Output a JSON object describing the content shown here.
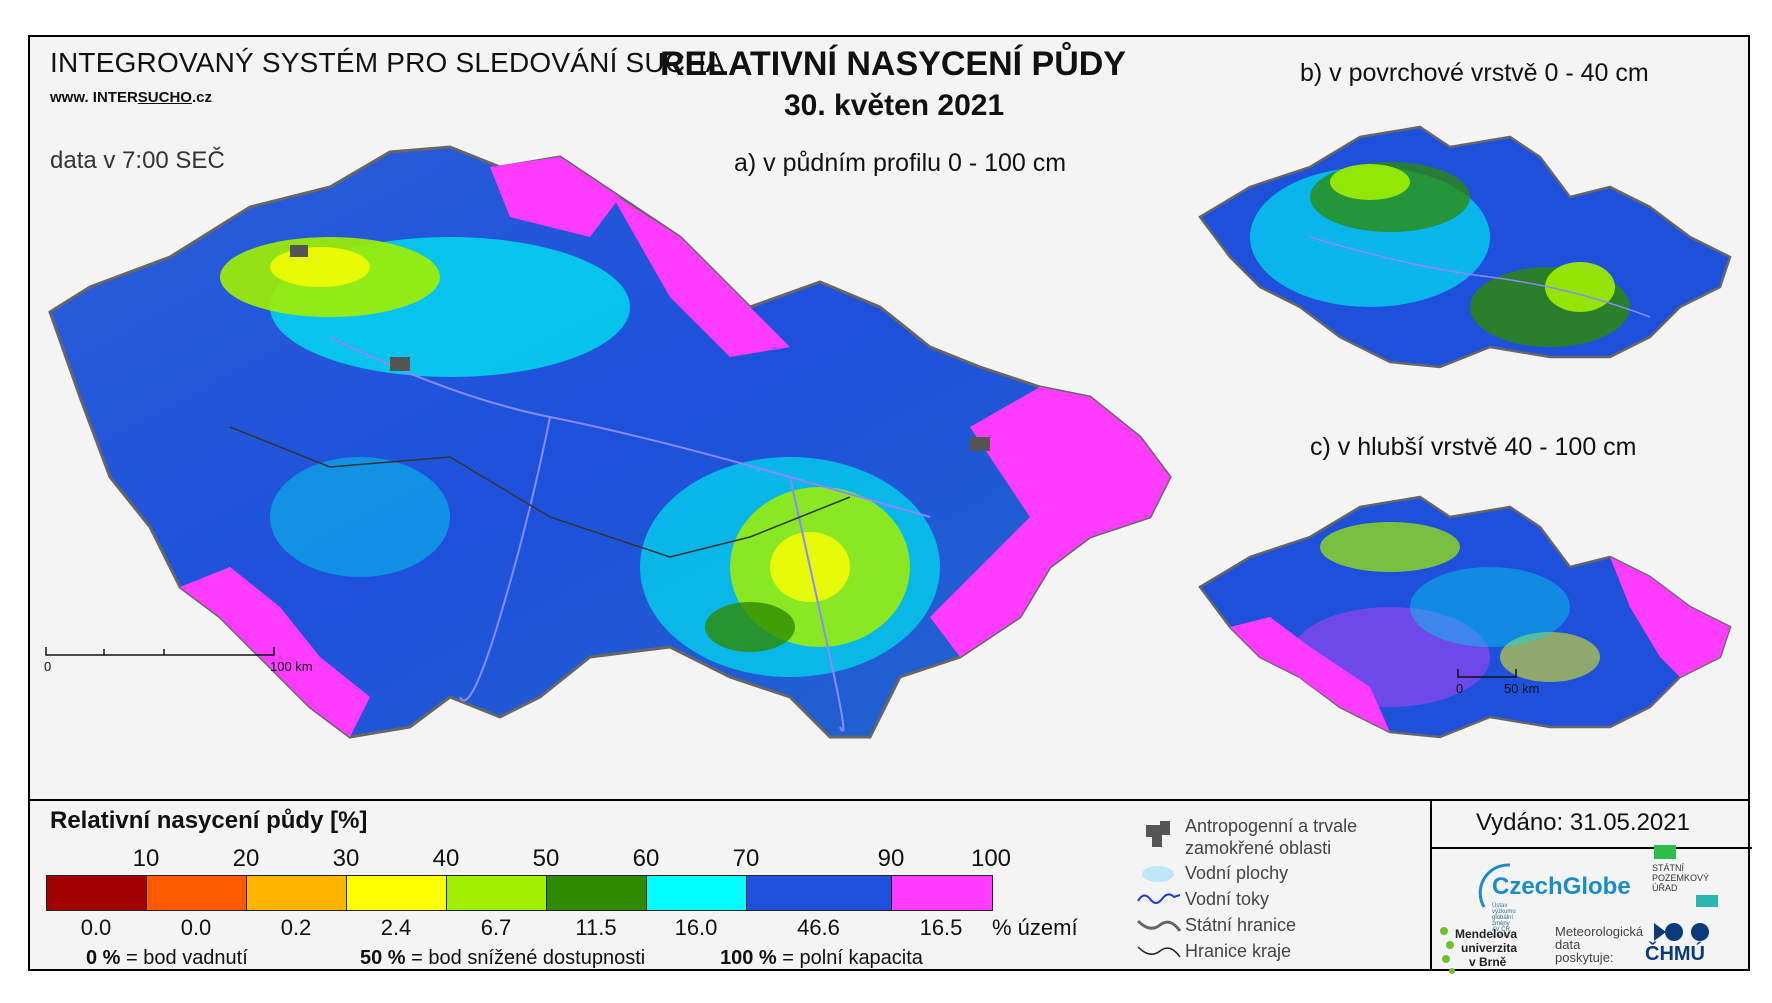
{
  "header": {
    "system_title": "INTEGROVANÝ SYSTÉM PRO SLEDOVÁNÍ SUCHA",
    "url_prefix": "www. INTER",
    "url_brand": "SUCHO",
    "url_suffix": ".cz",
    "data_time": "data v 7:00 SEČ",
    "main_title": "RELATIVNÍ NASYCENÍ PŮDY",
    "date": "30. květen 2021"
  },
  "maps": {
    "a_label": "a) v půdním profilu 0 - 100 cm",
    "b_label": "b) v povrchové vrstvě 0 - 40 cm",
    "c_label": "c) v hlubší vrstvě 40 - 100 cm",
    "scale_a": {
      "start": "0",
      "end": "100 km"
    },
    "scale_c": {
      "start": "0",
      "end": "50 km"
    }
  },
  "legend": {
    "title": "Relativní nasycení půdy [%]",
    "ticks": [
      "10",
      "20",
      "30",
      "40",
      "50",
      "60",
      "70",
      "90",
      "100"
    ],
    "classes": [
      {
        "color": "#a00000",
        "pct": "0.0"
      },
      {
        "color": "#ff5a00",
        "pct": "0.0"
      },
      {
        "color": "#ffb400",
        "pct": "0.2"
      },
      {
        "color": "#ffff00",
        "pct": "2.4"
      },
      {
        "color": "#a0f000",
        "pct": "6.7"
      },
      {
        "color": "#2e8b00",
        "pct": "11.5"
      },
      {
        "color": "#00ffff",
        "pct": "16.0"
      },
      {
        "color": "#1e50dc",
        "pct": "46.6"
      },
      {
        "color": "#ff3cff",
        "pct": "16.5"
      }
    ],
    "pct_unit": "% území",
    "notes": [
      {
        "bold": "0 %",
        "text": " = bod vadnutí"
      },
      {
        "bold": "50 %",
        "text": " = bod snížené dostupnosti"
      },
      {
        "bold": "100 %",
        "text": " = polní kapacita"
      }
    ],
    "symbols": {
      "anthropogenic": "Antropogenní a trvale zamokřené oblasti",
      "water_areas": "Vodní plochy",
      "water_streams": "Vodní toky",
      "state_border": "Státní hranice",
      "region_border": "Hranice kraje"
    }
  },
  "footer": {
    "issued": "Vydáno: 31.05.2021",
    "czechglobe": "CzechGlobe",
    "czechglobe_sub": "Ústav výzkumu globální změny AV ČR, v. v. i.",
    "spu": [
      "STÁTNÍ",
      "POZEMKOVÝ",
      "ÚŘAD"
    ],
    "mendel": [
      "Mendelova",
      "univerzita",
      "v Brně"
    ],
    "meteo": [
      "Meteorologická",
      "data",
      "poskytuje:"
    ],
    "chmu": "ČHMÚ"
  },
  "colors": {
    "border": "#000000",
    "background": "#f4f4f4",
    "map_outline": "#666666",
    "river": "#8a8aff"
  }
}
